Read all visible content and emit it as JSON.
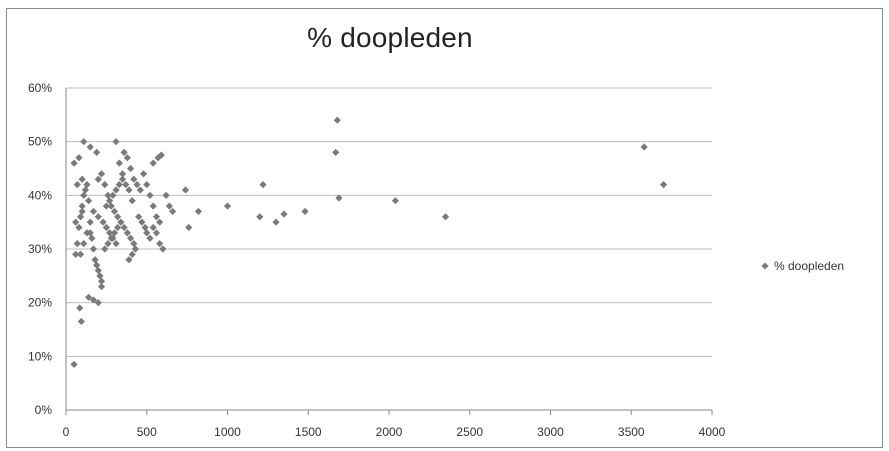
{
  "chart_data": {
    "type": "scatter",
    "title": "% doopleden",
    "xlabel": "",
    "ylabel": "",
    "xlim": [
      0,
      4000
    ],
    "ylim": [
      0,
      0.6
    ],
    "x_ticks": [
      0,
      500,
      1000,
      1500,
      2000,
      2500,
      3000,
      3500,
      4000
    ],
    "x_tick_labels": [
      "0",
      "500",
      "1000",
      "1500",
      "2000",
      "2500",
      "3000",
      "3500",
      "4000"
    ],
    "y_ticks": [
      0,
      0.1,
      0.2,
      0.3,
      0.4,
      0.5,
      0.6
    ],
    "y_tick_labels": [
      "0%",
      "10%",
      "20%",
      "30%",
      "40%",
      "50%",
      "60%"
    ],
    "grid": "horizontal",
    "legend_position": "right",
    "legend": [
      "% doopleden"
    ],
    "colors": {
      "marker": "#7a7a7a",
      "grid": "#bdbdbd",
      "axis": "#8a8a8a",
      "text": "#333333"
    },
    "series": [
      {
        "name": "% doopleden",
        "points": [
          [
            50,
            0.085
          ],
          [
            85,
            0.19
          ],
          [
            95,
            0.165
          ],
          [
            100,
            0.37
          ],
          [
            50,
            0.46
          ],
          [
            80,
            0.47
          ],
          [
            100,
            0.43
          ],
          [
            70,
            0.42
          ],
          [
            110,
            0.5
          ],
          [
            150,
            0.49
          ],
          [
            190,
            0.48
          ],
          [
            60,
            0.35
          ],
          [
            70,
            0.31
          ],
          [
            80,
            0.34
          ],
          [
            90,
            0.36
          ],
          [
            100,
            0.38
          ],
          [
            110,
            0.4
          ],
          [
            120,
            0.41
          ],
          [
            130,
            0.42
          ],
          [
            140,
            0.39
          ],
          [
            150,
            0.33
          ],
          [
            160,
            0.32
          ],
          [
            170,
            0.3
          ],
          [
            180,
            0.28
          ],
          [
            190,
            0.27
          ],
          [
            200,
            0.26
          ],
          [
            210,
            0.25
          ],
          [
            220,
            0.24
          ],
          [
            140,
            0.21
          ],
          [
            170,
            0.205
          ],
          [
            200,
            0.2
          ],
          [
            220,
            0.23
          ],
          [
            60,
            0.29
          ],
          [
            90,
            0.29
          ],
          [
            110,
            0.31
          ],
          [
            130,
            0.33
          ],
          [
            150,
            0.35
          ],
          [
            170,
            0.37
          ],
          [
            200,
            0.36
          ],
          [
            230,
            0.35
          ],
          [
            250,
            0.34
          ],
          [
            270,
            0.33
          ],
          [
            290,
            0.32
          ],
          [
            310,
            0.31
          ],
          [
            200,
            0.43
          ],
          [
            220,
            0.44
          ],
          [
            240,
            0.42
          ],
          [
            260,
            0.4
          ],
          [
            280,
            0.38
          ],
          [
            300,
            0.37
          ],
          [
            310,
            0.5
          ],
          [
            330,
            0.46
          ],
          [
            350,
            0.44
          ],
          [
            370,
            0.42
          ],
          [
            390,
            0.41
          ],
          [
            410,
            0.39
          ],
          [
            360,
            0.48
          ],
          [
            380,
            0.47
          ],
          [
            400,
            0.45
          ],
          [
            420,
            0.43
          ],
          [
            440,
            0.42
          ],
          [
            460,
            0.41
          ],
          [
            320,
            0.36
          ],
          [
            340,
            0.35
          ],
          [
            360,
            0.34
          ],
          [
            380,
            0.33
          ],
          [
            400,
            0.32
          ],
          [
            420,
            0.31
          ],
          [
            240,
            0.3
          ],
          [
            260,
            0.31
          ],
          [
            280,
            0.32
          ],
          [
            300,
            0.33
          ],
          [
            320,
            0.34
          ],
          [
            340,
            0.35
          ],
          [
            250,
            0.38
          ],
          [
            270,
            0.39
          ],
          [
            290,
            0.4
          ],
          [
            310,
            0.41
          ],
          [
            330,
            0.42
          ],
          [
            350,
            0.43
          ],
          [
            480,
            0.44
          ],
          [
            500,
            0.42
          ],
          [
            520,
            0.4
          ],
          [
            540,
            0.38
          ],
          [
            560,
            0.36
          ],
          [
            580,
            0.35
          ],
          [
            500,
            0.33
          ],
          [
            520,
            0.32
          ],
          [
            540,
            0.34
          ],
          [
            560,
            0.33
          ],
          [
            580,
            0.31
          ],
          [
            600,
            0.3
          ],
          [
            540,
            0.46
          ],
          [
            570,
            0.47
          ],
          [
            590,
            0.475
          ],
          [
            620,
            0.4
          ],
          [
            640,
            0.38
          ],
          [
            660,
            0.37
          ],
          [
            450,
            0.36
          ],
          [
            470,
            0.35
          ],
          [
            490,
            0.34
          ],
          [
            430,
            0.3
          ],
          [
            410,
            0.29
          ],
          [
            390,
            0.28
          ],
          [
            740,
            0.41
          ],
          [
            760,
            0.34
          ],
          [
            820,
            0.37
          ],
          [
            1000,
            0.38
          ],
          [
            1200,
            0.36
          ],
          [
            1220,
            0.42
          ],
          [
            1300,
            0.35
          ],
          [
            1350,
            0.365
          ],
          [
            1480,
            0.37
          ],
          [
            1670,
            0.48
          ],
          [
            1680,
            0.54
          ],
          [
            1690,
            0.395
          ],
          [
            2040,
            0.39
          ],
          [
            2350,
            0.36
          ],
          [
            3580,
            0.49
          ],
          [
            3700,
            0.42
          ]
        ]
      }
    ]
  }
}
